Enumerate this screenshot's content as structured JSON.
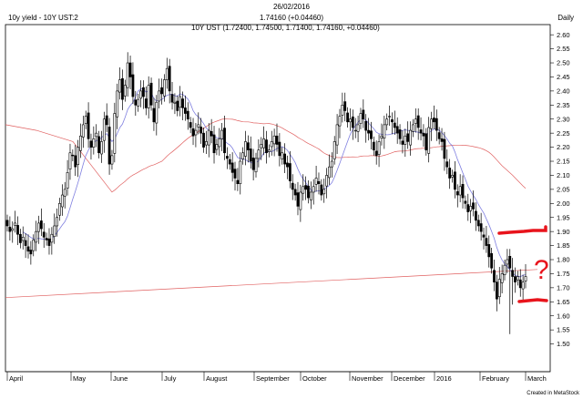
{
  "header": {
    "date": "26/02/2016",
    "title": "10y yield - 10Y UST:2",
    "last_value": "1.74160 (+0.04460)",
    "period": "Daily",
    "ohlc_line": "10Y UST (1.72400, 1.74500, 1.71400, 1.74160, +0.04460)"
  },
  "footer": {
    "credit": "Created in MetaStock"
  },
  "annotation": {
    "mark": "?",
    "color": "#e8141c"
  },
  "chart_data": {
    "type": "candlestick",
    "ylim": [
      1.45,
      2.62
    ],
    "yticks": [
      "1.50",
      "1.55",
      "1.60",
      "1.65",
      "1.70",
      "1.75",
      "1.80",
      "1.85",
      "1.90",
      "1.95",
      "2.00",
      "2.05",
      "2.10",
      "2.15",
      "2.20",
      "2.25",
      "2.30",
      "2.35",
      "2.40",
      "2.45",
      "2.50",
      "2.55",
      "2.60"
    ],
    "xticks": [
      "April",
      "May",
      "June",
      "July",
      "August",
      "September",
      "October",
      "November",
      "December",
      "2016",
      "February",
      "March"
    ],
    "colors": {
      "ma_fast": "#8080e0",
      "ma_slow": "#e06060",
      "trend": "#e06060",
      "candle": "#000000"
    },
    "trendline": {
      "start": [
        "2015-04-01",
        1.665
      ],
      "end": [
        "2016-02-26",
        1.765
      ]
    },
    "candle_closes": [
      1.92,
      1.9,
      1.91,
      1.93,
      1.89,
      1.86,
      1.88,
      1.85,
      1.83,
      1.82,
      1.87,
      1.9,
      1.93,
      1.91,
      1.88,
      1.87,
      1.85,
      1.89,
      1.92,
      1.95,
      2.0,
      2.03,
      2.05,
      2.11,
      2.18,
      2.17,
      2.13,
      2.2,
      2.24,
      2.28,
      2.31,
      2.23,
      2.2,
      2.23,
      2.25,
      2.18,
      2.22,
      2.3,
      2.28,
      2.14,
      2.17,
      2.32,
      2.4,
      2.44,
      2.37,
      2.42,
      2.5,
      2.45,
      2.38,
      2.35,
      2.37,
      2.4,
      2.38,
      2.34,
      2.42,
      2.35,
      2.29,
      2.36,
      2.4,
      2.39,
      2.44,
      2.48,
      2.4,
      2.36,
      2.36,
      2.33,
      2.38,
      2.34,
      2.32,
      2.3,
      2.27,
      2.24,
      2.26,
      2.28,
      2.25,
      2.2,
      2.22,
      2.26,
      2.24,
      2.18,
      2.21,
      2.23,
      2.26,
      2.18,
      2.16,
      2.14,
      2.11,
      2.09,
      2.07,
      2.15,
      2.18,
      2.22,
      2.19,
      2.15,
      2.12,
      2.16,
      2.19,
      2.21,
      2.23,
      2.18,
      2.19,
      2.22,
      2.24,
      2.21,
      2.17,
      2.18,
      2.14,
      2.13,
      2.08,
      2.05,
      2.03,
      1.99,
      2.04,
      2.06,
      2.05,
      2.02,
      2.04,
      2.06,
      2.09,
      2.07,
      2.03,
      2.05,
      2.1,
      2.13,
      2.15,
      2.22,
      2.28,
      2.31,
      2.35,
      2.33,
      2.29,
      2.3,
      2.27,
      2.26,
      2.28,
      2.32,
      2.3,
      2.26,
      2.25,
      2.23,
      2.19,
      2.17,
      2.22,
      2.24,
      2.28,
      2.3,
      2.31,
      2.29,
      2.27,
      2.25,
      2.23,
      2.21,
      2.24,
      2.22,
      2.26,
      2.28,
      2.3,
      2.27,
      2.25,
      2.24,
      2.19,
      2.27,
      2.3,
      2.29,
      2.26,
      2.23,
      2.22,
      2.16,
      2.13,
      2.09,
      2.1,
      2.05,
      2.03,
      2.06,
      2.02,
      2.0,
      1.97,
      1.99,
      1.98,
      1.94,
      1.92,
      1.9,
      1.88,
      1.85,
      1.81,
      1.77,
      1.72,
      1.66,
      1.73,
      1.75,
      1.78,
      1.8,
      1.77,
      1.74,
      1.72,
      1.74,
      1.7,
      1.72,
      1.74
    ]
  }
}
